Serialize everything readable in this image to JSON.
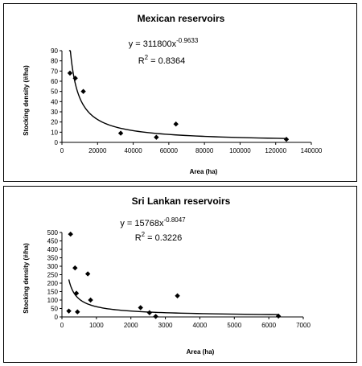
{
  "chart_data": [
    {
      "type": "scatter",
      "title": "Mexican reservoirs",
      "xlabel": "Area (ha)",
      "ylabel": "Stocking density (#/ha)",
      "equation": "y = 311800x",
      "equation_exponent": "-0.9633",
      "r2_label": "R",
      "r2_sup": "2",
      "r2_value": " = 0.8364",
      "xlim": [
        0,
        140000
      ],
      "ylim": [
        0,
        90
      ],
      "x_ticks": [
        0,
        20000,
        40000,
        60000,
        80000,
        100000,
        120000,
        140000
      ],
      "y_ticks": [
        0,
        10,
        20,
        30,
        40,
        50,
        60,
        70,
        80,
        90
      ],
      "points": [
        {
          "x": 4500,
          "y": 68
        },
        {
          "x": 7500,
          "y": 63
        },
        {
          "x": 12000,
          "y": 50
        },
        {
          "x": 33000,
          "y": 9
        },
        {
          "x": 53000,
          "y": 5
        },
        {
          "x": 64000,
          "y": 18
        },
        {
          "x": 126000,
          "y": 3
        }
      ],
      "trend": {
        "type": "power",
        "a": 311800,
        "b": -0.9633,
        "x_from": 4000,
        "x_to": 126000
      }
    },
    {
      "type": "scatter",
      "title": "Sri Lankan reservoirs",
      "xlabel": "Area (ha)",
      "ylabel": "Stocking density (#/ha)",
      "equation": "y = 15768x",
      "equation_exponent": "-0.8047",
      "r2_label": "R",
      "r2_sup": "2",
      "r2_value": " = 0.3226",
      "xlim": [
        0,
        7000
      ],
      "ylim": [
        0,
        500
      ],
      "x_ticks": [
        0,
        1000,
        2000,
        3000,
        4000,
        5000,
        6000,
        7000
      ],
      "y_ticks": [
        0,
        50,
        100,
        150,
        200,
        250,
        300,
        350,
        400,
        450,
        500
      ],
      "points": [
        {
          "x": 200,
          "y": 35
        },
        {
          "x": 250,
          "y": 490
        },
        {
          "x": 380,
          "y": 290
        },
        {
          "x": 420,
          "y": 140
        },
        {
          "x": 450,
          "y": 30
        },
        {
          "x": 750,
          "y": 255
        },
        {
          "x": 830,
          "y": 100
        },
        {
          "x": 2280,
          "y": 55
        },
        {
          "x": 2540,
          "y": 25
        },
        {
          "x": 2720,
          "y": 3
        },
        {
          "x": 3350,
          "y": 125
        },
        {
          "x": 6280,
          "y": 5
        }
      ],
      "trend": {
        "type": "power",
        "a": 15768,
        "b": -0.8047,
        "x_from": 200,
        "x_to": 6300
      }
    }
  ]
}
